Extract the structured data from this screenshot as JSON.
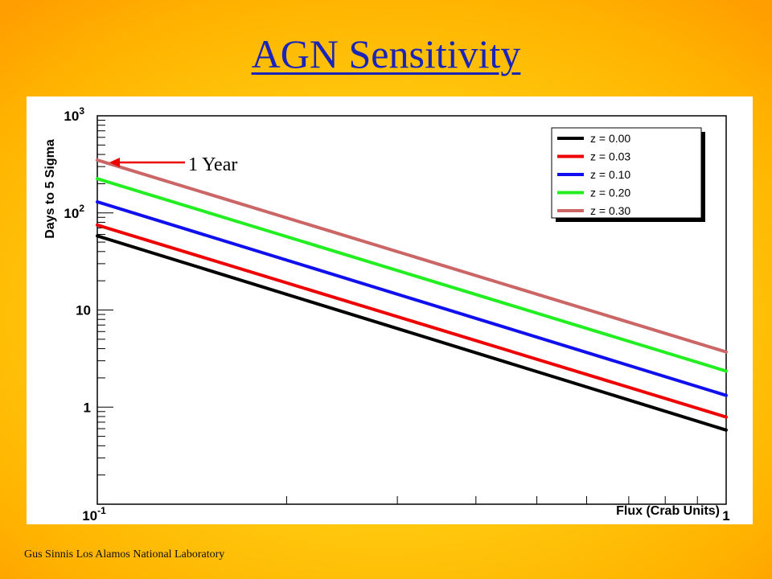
{
  "slide": {
    "title": "AGN Sensitivity",
    "footer": "Gus Sinnis Los Alamos National Laboratory"
  },
  "chart_data": {
    "type": "line",
    "title": "",
    "xlabel": "Flux (Crab Units)",
    "ylabel": "Days to 5 Sigma",
    "xscale": "log",
    "yscale": "log",
    "xlim": [
      0.1,
      1
    ],
    "ylim": [
      0.1,
      1000
    ],
    "x_tick_labels": [
      {
        "value": 0.1,
        "base": "10",
        "exp": "-1"
      },
      {
        "value": 1,
        "base": "1",
        "exp": ""
      }
    ],
    "y_tick_labels": [
      {
        "value": 1,
        "base": "1",
        "exp": ""
      },
      {
        "value": 10,
        "base": "10",
        "exp": ""
      },
      {
        "value": 100,
        "base": "10",
        "exp": "2"
      },
      {
        "value": 1000,
        "base": "10",
        "exp": "3"
      }
    ],
    "legend_position": "top-right",
    "grid": false,
    "series": [
      {
        "name": "z = 0.00",
        "color": "#000000",
        "x": [
          0.1,
          1
        ],
        "y": [
          58,
          0.58
        ]
      },
      {
        "name": "z = 0.03",
        "color": "#ee0000",
        "x": [
          0.1,
          1
        ],
        "y": [
          75,
          0.79
        ]
      },
      {
        "name": "z = 0.10",
        "color": "#1010ee",
        "x": [
          0.1,
          1
        ],
        "y": [
          130,
          1.32
        ]
      },
      {
        "name": "z = 0.20",
        "color": "#22ee22",
        "x": [
          0.1,
          1
        ],
        "y": [
          225,
          2.35
        ]
      },
      {
        "name": "z = 0.30",
        "color": "#cc6666",
        "x": [
          0.1,
          1
        ],
        "y": [
          350,
          3.7
        ]
      }
    ],
    "annotations": [
      {
        "text": "1 Year",
        "x": 0.1,
        "y": 365,
        "arrow_color": "#ee0000"
      }
    ]
  }
}
